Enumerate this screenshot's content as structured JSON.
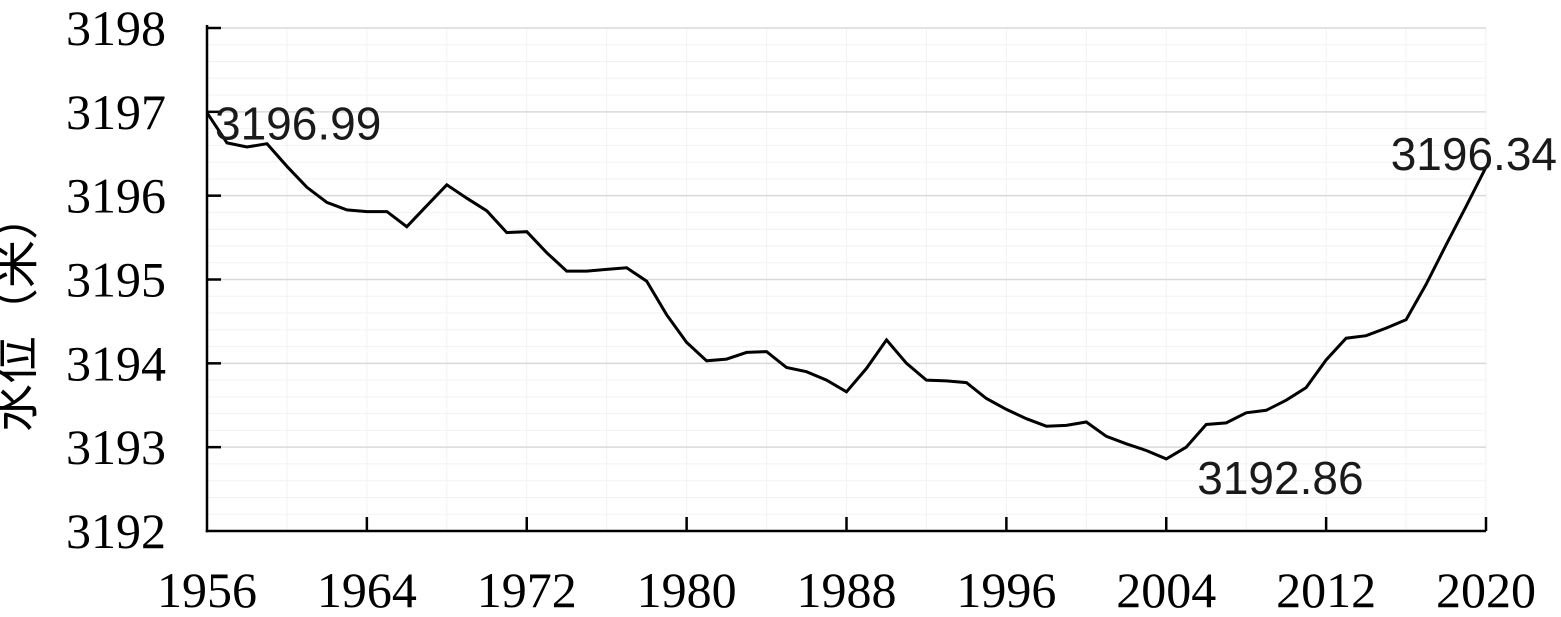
{
  "chart_data": {
    "type": "line",
    "title": "",
    "xlabel": "",
    "ylabel": "水位（米）",
    "x": [
      1956,
      1957,
      1958,
      1959,
      1960,
      1961,
      1962,
      1963,
      1964,
      1965,
      1966,
      1967,
      1968,
      1969,
      1970,
      1971,
      1972,
      1973,
      1974,
      1975,
      1976,
      1977,
      1978,
      1979,
      1980,
      1981,
      1982,
      1983,
      1984,
      1985,
      1986,
      1987,
      1988,
      1989,
      1990,
      1991,
      1992,
      1993,
      1994,
      1995,
      1996,
      1997,
      1998,
      1999,
      2000,
      2001,
      2002,
      2003,
      2004,
      2005,
      2006,
      2007,
      2008,
      2009,
      2010,
      2011,
      2012,
      2013,
      2014,
      2015,
      2016,
      2017,
      2018,
      2019,
      2020
    ],
    "values": [
      3196.99,
      3196.63,
      3196.58,
      3196.62,
      3196.35,
      3196.1,
      3195.92,
      3195.83,
      3195.81,
      3195.81,
      3195.63,
      3195.88,
      3196.13,
      3195.97,
      3195.82,
      3195.56,
      3195.57,
      3195.32,
      3195.1,
      3195.1,
      3195.12,
      3195.14,
      3194.98,
      3194.58,
      3194.25,
      3194.03,
      3194.05,
      3194.13,
      3194.14,
      3193.95,
      3193.9,
      3193.8,
      3193.66,
      3193.94,
      3194.28,
      3194.0,
      3193.8,
      3193.79,
      3193.77,
      3193.58,
      3193.45,
      3193.34,
      3193.25,
      3193.26,
      3193.3,
      3193.13,
      3193.04,
      3192.96,
      3192.86,
      3193.0,
      3193.27,
      3193.29,
      3193.41,
      3193.44,
      3193.56,
      3193.71,
      3194.04,
      3194.3,
      3194.33,
      3194.42,
      3194.52,
      3194.94,
      3195.41,
      3195.87,
      3196.34
    ],
    "xlim": [
      1956,
      2020
    ],
    "ylim": [
      3192,
      3198
    ],
    "xticks": [
      1956,
      1964,
      1972,
      1980,
      1988,
      1996,
      2004,
      2012,
      2020
    ],
    "yticks": [
      3192,
      3193,
      3194,
      3195,
      3196,
      3197,
      3198
    ],
    "grid": {
      "h_major_step": 1,
      "h_minor_step": 0.2,
      "v_minor_step_years": 4,
      "on": true
    },
    "legend": "none",
    "annotations": [
      {
        "x": 1956,
        "y": 3196.99,
        "label": "3196.99"
      },
      {
        "x": 2004,
        "y": 3192.86,
        "label": "3192.86"
      },
      {
        "x": 2020,
        "y": 3196.34,
        "label": "3196.34"
      }
    ],
    "colors": {
      "line": "#000000",
      "axis": "#000000",
      "grid_major": "#d9d9d9",
      "grid_minor": "#f2f2f2",
      "text": "#000000",
      "background": "#ffffff"
    }
  }
}
